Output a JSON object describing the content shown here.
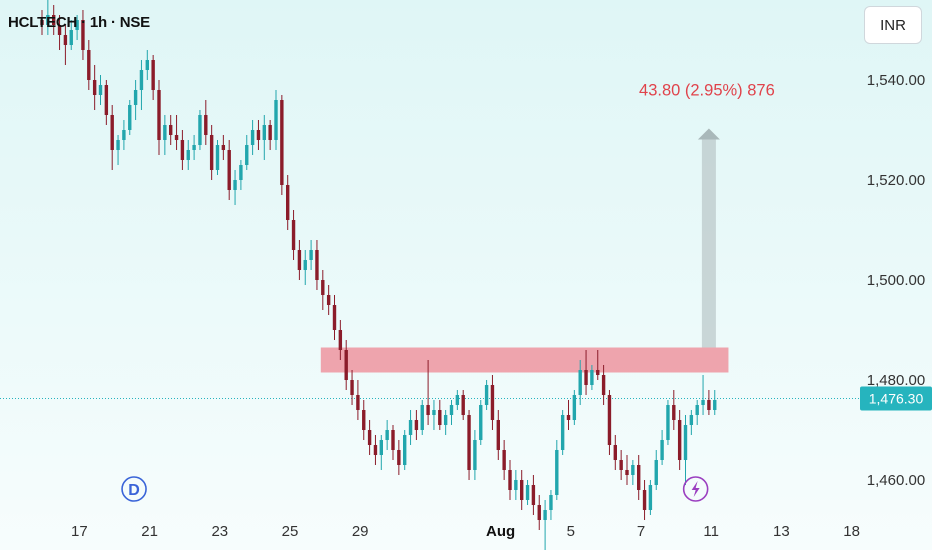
{
  "header": {
    "symbol_line": "HCLTECH · 1h · NSE",
    "currency_button": "INR"
  },
  "colors": {
    "up": "#22a6ad",
    "down": "#8b1c2a",
    "resistance_zone": "#ef6b7a",
    "price_line": "#26b4be",
    "measure_text": "#e0434b",
    "marker_d": "#3a64d8",
    "marker_bolt": "#9b3fc0"
  },
  "icons": {
    "dividend_marker": "D",
    "earnings_marker": "lightning-bolt"
  },
  "chart_data": {
    "type": "candlestick",
    "title": "HCLTECH · 1h · NSE",
    "currency": "INR",
    "ylim": [
      1446,
      1556
    ],
    "y_ticks": [
      "1,540.00",
      "1,520.00",
      "1,500.00",
      "1,480.00",
      "1,460.00"
    ],
    "y_tick_values": [
      1540,
      1520,
      1500,
      1480,
      1460
    ],
    "x_tick_labels": [
      "17",
      "21",
      "23",
      "25",
      "29",
      "Aug",
      "5",
      "7",
      "11",
      "13",
      "18"
    ],
    "x_tick_index": [
      4,
      16,
      28,
      40,
      52,
      76,
      88,
      100,
      112,
      124,
      136
    ],
    "last_price": 1476.3,
    "last_price_label": "1,476.30",
    "resistance_zone": {
      "from_index": 48,
      "to_index": 117,
      "low": 1481.5,
      "high": 1486.5
    },
    "measure": {
      "index": 114,
      "from": 1486.5,
      "to": 1530.3,
      "label": "43.80 (2.95%) 876"
    },
    "markers": [
      {
        "type": "dividend",
        "label": "D",
        "index": 13
      },
      {
        "type": "earnings",
        "label": "lightning",
        "index": 109
      }
    ],
    "candles": [
      [
        1552,
        1554,
        1549,
        1551
      ],
      [
        1551,
        1556,
        1549,
        1553
      ],
      [
        1553,
        1555,
        1549,
        1551
      ],
      [
        1551,
        1553,
        1546,
        1549
      ],
      [
        1549,
        1551,
        1543,
        1547
      ],
      [
        1547,
        1552,
        1546,
        1550
      ],
      [
        1550,
        1553,
        1548,
        1552
      ],
      [
        1552,
        1554,
        1544,
        1546
      ],
      [
        1546,
        1548,
        1538,
        1540
      ],
      [
        1540,
        1543,
        1534,
        1537
      ],
      [
        1537,
        1541,
        1535,
        1539
      ],
      [
        1539,
        1540,
        1531,
        1533
      ],
      [
        1533,
        1535,
        1522,
        1526
      ],
      [
        1526,
        1529,
        1523,
        1528
      ],
      [
        1528,
        1532,
        1526,
        1530
      ],
      [
        1530,
        1536,
        1529,
        1535
      ],
      [
        1535,
        1540,
        1532,
        1538
      ],
      [
        1538,
        1544,
        1534,
        1542
      ],
      [
        1542,
        1546,
        1540,
        1544
      ],
      [
        1544,
        1545,
        1536,
        1538
      ],
      [
        1538,
        1540,
        1525,
        1528
      ],
      [
        1528,
        1533,
        1525,
        1531
      ],
      [
        1531,
        1533,
        1527,
        1529
      ],
      [
        1529,
        1533,
        1526,
        1528
      ],
      [
        1528,
        1530,
        1522,
        1524
      ],
      [
        1524,
        1528,
        1522,
        1526
      ],
      [
        1526,
        1529,
        1524,
        1527
      ],
      [
        1527,
        1534,
        1526,
        1533
      ],
      [
        1533,
        1536,
        1527,
        1529
      ],
      [
        1529,
        1531,
        1520,
        1522
      ],
      [
        1522,
        1528,
        1521,
        1527
      ],
      [
        1527,
        1529,
        1524,
        1526
      ],
      [
        1526,
        1528,
        1516,
        1518
      ],
      [
        1518,
        1522,
        1515,
        1520
      ],
      [
        1520,
        1524,
        1518,
        1523
      ],
      [
        1523,
        1529,
        1522,
        1527
      ],
      [
        1527,
        1532,
        1525,
        1530
      ],
      [
        1530,
        1532,
        1526,
        1528
      ],
      [
        1528,
        1533,
        1524,
        1531
      ],
      [
        1531,
        1532,
        1526,
        1528
      ],
      [
        1528,
        1538,
        1526,
        1536
      ],
      [
        1536,
        1537,
        1517,
        1519
      ],
      [
        1519,
        1521,
        1510,
        1512
      ],
      [
        1512,
        1514,
        1504,
        1506
      ],
      [
        1506,
        1508,
        1500,
        1502
      ],
      [
        1502,
        1506,
        1499,
        1504
      ],
      [
        1504,
        1508,
        1502,
        1506
      ],
      [
        1506,
        1508,
        1498,
        1500
      ],
      [
        1500,
        1502,
        1494,
        1497
      ],
      [
        1497,
        1499,
        1493,
        1495
      ],
      [
        1495,
        1497,
        1488,
        1490
      ],
      [
        1490,
        1492,
        1484,
        1486
      ],
      [
        1486,
        1488,
        1478,
        1480
      ],
      [
        1480,
        1482,
        1475,
        1477
      ],
      [
        1477,
        1480,
        1472,
        1474
      ],
      [
        1474,
        1476,
        1468,
        1470
      ],
      [
        1470,
        1472,
        1465,
        1467
      ],
      [
        1467,
        1469,
        1463,
        1465
      ],
      [
        1465,
        1469,
        1462,
        1468
      ],
      [
        1468,
        1472,
        1466,
        1470
      ],
      [
        1470,
        1471,
        1464,
        1466
      ],
      [
        1466,
        1468,
        1461,
        1463
      ],
      [
        1463,
        1470,
        1462,
        1469
      ],
      [
        1469,
        1474,
        1467,
        1472
      ],
      [
        1472,
        1474,
        1468,
        1470
      ],
      [
        1470,
        1476,
        1469,
        1475
      ],
      [
        1475,
        1484,
        1471,
        1473
      ],
      [
        1473,
        1476,
        1470,
        1474
      ],
      [
        1474,
        1476,
        1470,
        1471
      ],
      [
        1471,
        1474,
        1469,
        1473
      ],
      [
        1473,
        1476,
        1471,
        1475
      ],
      [
        1475,
        1478,
        1474,
        1477
      ],
      [
        1477,
        1478,
        1472,
        1473
      ],
      [
        1473,
        1474,
        1460,
        1462
      ],
      [
        1462,
        1470,
        1460,
        1468
      ],
      [
        1468,
        1476,
        1467,
        1475
      ],
      [
        1475,
        1480,
        1474,
        1479
      ],
      [
        1479,
        1481,
        1470,
        1472
      ],
      [
        1472,
        1474,
        1464,
        1466
      ],
      [
        1466,
        1468,
        1460,
        1462
      ],
      [
        1462,
        1464,
        1456,
        1458
      ],
      [
        1458,
        1462,
        1456,
        1460
      ],
      [
        1460,
        1462,
        1454,
        1456
      ],
      [
        1456,
        1460,
        1455,
        1459
      ],
      [
        1459,
        1461,
        1453,
        1455
      ],
      [
        1455,
        1457,
        1450,
        1452
      ],
      [
        1452,
        1456,
        1446,
        1454
      ],
      [
        1454,
        1458,
        1452,
        1457
      ],
      [
        1457,
        1468,
        1456,
        1466
      ],
      [
        1466,
        1474,
        1465,
        1473
      ],
      [
        1473,
        1476,
        1470,
        1472
      ],
      [
        1472,
        1478,
        1471,
        1477
      ],
      [
        1477,
        1484,
        1475,
        1482
      ],
      [
        1482,
        1486,
        1477,
        1479
      ],
      [
        1479,
        1483,
        1478,
        1482
      ],
      [
        1482,
        1486,
        1480,
        1481
      ],
      [
        1481,
        1483,
        1475,
        1477
      ],
      [
        1477,
        1478,
        1465,
        1467
      ],
      [
        1467,
        1469,
        1462,
        1464
      ],
      [
        1464,
        1466,
        1460,
        1462
      ],
      [
        1462,
        1465,
        1459,
        1461
      ],
      [
        1461,
        1464,
        1459,
        1463
      ],
      [
        1463,
        1465,
        1456,
        1458
      ],
      [
        1458,
        1460,
        1452,
        1454
      ],
      [
        1454,
        1460,
        1453,
        1459
      ],
      [
        1459,
        1466,
        1458,
        1464
      ],
      [
        1464,
        1470,
        1463,
        1468
      ],
      [
        1468,
        1476,
        1467,
        1475
      ],
      [
        1475,
        1478,
        1470,
        1472
      ],
      [
        1472,
        1474,
        1462,
        1464
      ],
      [
        1464,
        1473,
        1459,
        1471
      ],
      [
        1471,
        1474,
        1469,
        1473
      ],
      [
        1473,
        1476,
        1471,
        1475
      ],
      [
        1475,
        1481,
        1473,
        1476
      ],
      [
        1476,
        1478,
        1473,
        1474
      ],
      [
        1474,
        1478,
        1473,
        1476
      ]
    ]
  }
}
